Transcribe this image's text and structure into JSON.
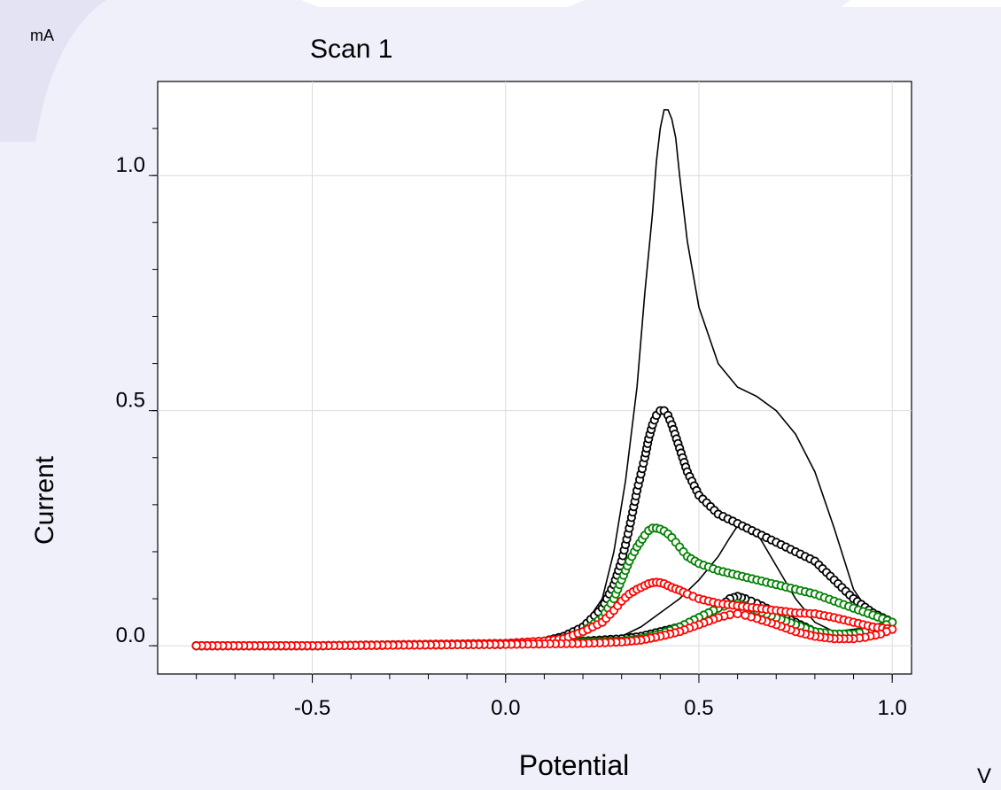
{
  "chart_data": {
    "type": "scatter",
    "title": "Scan 1",
    "xlabel": "Potential",
    "ylabel": "Current",
    "x_unit": "V",
    "y_unit": "mA",
    "xlim": [
      -0.9,
      1.05
    ],
    "ylim": [
      -0.06,
      1.2
    ],
    "x_ticks": [
      {
        "value": -0.5,
        "label": "-0.5"
      },
      {
        "value": 0.0,
        "label": "0.0"
      },
      {
        "value": 0.5,
        "label": "0.5"
      },
      {
        "value": 1.0,
        "label": "1.0"
      }
    ],
    "y_ticks": [
      {
        "value": 0.0,
        "label": "0.0"
      },
      {
        "value": 0.5,
        "label": "0.5"
      },
      {
        "value": 1.0,
        "label": "1.0"
      }
    ],
    "grid": true,
    "legend": "none",
    "series": [
      {
        "color": "#000000",
        "style": "line",
        "x": [
          -0.8,
          -0.5,
          0.0,
          0.1,
          0.15,
          0.2,
          0.25,
          0.28,
          0.31,
          0.34,
          0.36,
          0.38,
          0.39,
          0.4,
          0.41,
          0.42,
          0.43,
          0.44,
          0.45,
          0.47,
          0.5,
          0.55,
          0.6,
          0.65,
          0.7,
          0.75,
          0.8,
          0.85,
          0.9,
          0.95,
          1.0,
          0.98,
          0.95,
          0.9,
          0.85,
          0.8,
          0.75,
          0.7,
          0.65,
          0.62,
          0.6,
          0.58,
          0.55,
          0.5,
          0.45,
          0.4,
          0.35,
          0.3,
          0.2,
          0.1,
          0.0,
          -0.5,
          -0.8
        ],
        "y": [
          0.0,
          0.0,
          0.0,
          0.01,
          0.02,
          0.04,
          0.1,
          0.2,
          0.35,
          0.55,
          0.75,
          0.92,
          1.03,
          1.1,
          1.14,
          1.14,
          1.12,
          1.08,
          1.0,
          0.86,
          0.72,
          0.6,
          0.55,
          0.53,
          0.5,
          0.45,
          0.37,
          0.25,
          0.12,
          0.06,
          0.05,
          0.045,
          0.04,
          0.035,
          0.03,
          0.05,
          0.1,
          0.17,
          0.24,
          0.26,
          0.255,
          0.23,
          0.19,
          0.14,
          0.1,
          0.07,
          0.04,
          0.02,
          0.01,
          0.005,
          0.003,
          0.0,
          0.0
        ]
      },
      {
        "color": "#000000",
        "style": "circles",
        "x": [
          -0.8,
          -0.5,
          0.0,
          0.1,
          0.15,
          0.2,
          0.25,
          0.28,
          0.3,
          0.32,
          0.34,
          0.36,
          0.37,
          0.38,
          0.39,
          0.4,
          0.41,
          0.42,
          0.43,
          0.45,
          0.47,
          0.5,
          0.55,
          0.6,
          0.65,
          0.7,
          0.75,
          0.8,
          0.85,
          0.9,
          0.95,
          1.0,
          0.97,
          0.93,
          0.9,
          0.85,
          0.8,
          0.75,
          0.7,
          0.65,
          0.62,
          0.6,
          0.58,
          0.55,
          0.5,
          0.45,
          0.4,
          0.35,
          0.3,
          0.2,
          0.1,
          0.0,
          -0.5,
          -0.8
        ],
        "y": [
          0.0,
          0.0,
          0.005,
          0.01,
          0.02,
          0.04,
          0.08,
          0.13,
          0.18,
          0.25,
          0.33,
          0.4,
          0.44,
          0.47,
          0.49,
          0.5,
          0.5,
          0.49,
          0.47,
          0.42,
          0.37,
          0.32,
          0.28,
          0.26,
          0.24,
          0.22,
          0.2,
          0.18,
          0.14,
          0.1,
          0.07,
          0.05,
          0.035,
          0.025,
          0.02,
          0.02,
          0.03,
          0.05,
          0.07,
          0.09,
          0.1,
          0.105,
          0.1,
          0.08,
          0.06,
          0.04,
          0.03,
          0.02,
          0.015,
          0.01,
          0.005,
          0.003,
          0.0,
          0.0
        ]
      },
      {
        "color": "#008000",
        "style": "circles",
        "x": [
          -0.8,
          -0.5,
          0.0,
          0.1,
          0.15,
          0.2,
          0.25,
          0.28,
          0.3,
          0.32,
          0.34,
          0.36,
          0.37,
          0.38,
          0.39,
          0.4,
          0.41,
          0.42,
          0.43,
          0.45,
          0.47,
          0.5,
          0.55,
          0.6,
          0.65,
          0.7,
          0.75,
          0.8,
          0.85,
          0.9,
          0.95,
          1.0,
          0.97,
          0.93,
          0.9,
          0.85,
          0.8,
          0.75,
          0.7,
          0.65,
          0.62,
          0.6,
          0.58,
          0.55,
          0.5,
          0.45,
          0.4,
          0.35,
          0.3,
          0.2,
          0.1,
          0.0,
          -0.5,
          -0.8
        ],
        "y": [
          0.0,
          0.0,
          0.005,
          0.01,
          0.015,
          0.03,
          0.06,
          0.1,
          0.14,
          0.18,
          0.21,
          0.235,
          0.245,
          0.25,
          0.25,
          0.248,
          0.244,
          0.238,
          0.23,
          0.21,
          0.19,
          0.175,
          0.16,
          0.15,
          0.14,
          0.13,
          0.12,
          0.11,
          0.095,
          0.08,
          0.065,
          0.05,
          0.04,
          0.03,
          0.025,
          0.025,
          0.03,
          0.045,
          0.06,
          0.075,
          0.085,
          0.09,
          0.088,
          0.08,
          0.06,
          0.04,
          0.025,
          0.015,
          0.01,
          0.008,
          0.005,
          0.003,
          0.0,
          0.0
        ]
      },
      {
        "color": "#ff0000",
        "style": "circles",
        "x": [
          -0.8,
          -0.5,
          0.0,
          0.1,
          0.15,
          0.2,
          0.25,
          0.28,
          0.3,
          0.32,
          0.34,
          0.36,
          0.37,
          0.38,
          0.39,
          0.4,
          0.41,
          0.42,
          0.43,
          0.45,
          0.47,
          0.5,
          0.55,
          0.6,
          0.65,
          0.7,
          0.75,
          0.8,
          0.85,
          0.9,
          0.95,
          1.0,
          0.97,
          0.93,
          0.9,
          0.85,
          0.8,
          0.75,
          0.7,
          0.65,
          0.62,
          0.6,
          0.58,
          0.55,
          0.5,
          0.45,
          0.4,
          0.35,
          0.3,
          0.2,
          0.1,
          0.0,
          -0.5,
          -0.8
        ],
        "y": [
          0.0,
          0.0,
          0.005,
          0.01,
          0.015,
          0.03,
          0.05,
          0.075,
          0.095,
          0.11,
          0.12,
          0.128,
          0.132,
          0.134,
          0.135,
          0.134,
          0.132,
          0.128,
          0.124,
          0.118,
          0.11,
          0.1,
          0.09,
          0.085,
          0.08,
          0.075,
          0.07,
          0.068,
          0.06,
          0.05,
          0.04,
          0.035,
          0.025,
          0.018,
          0.015,
          0.015,
          0.02,
          0.03,
          0.045,
          0.058,
          0.065,
          0.068,
          0.066,
          0.06,
          0.045,
          0.03,
          0.02,
          0.012,
          0.008,
          0.005,
          0.004,
          0.003,
          0.0,
          0.0
        ]
      }
    ]
  }
}
